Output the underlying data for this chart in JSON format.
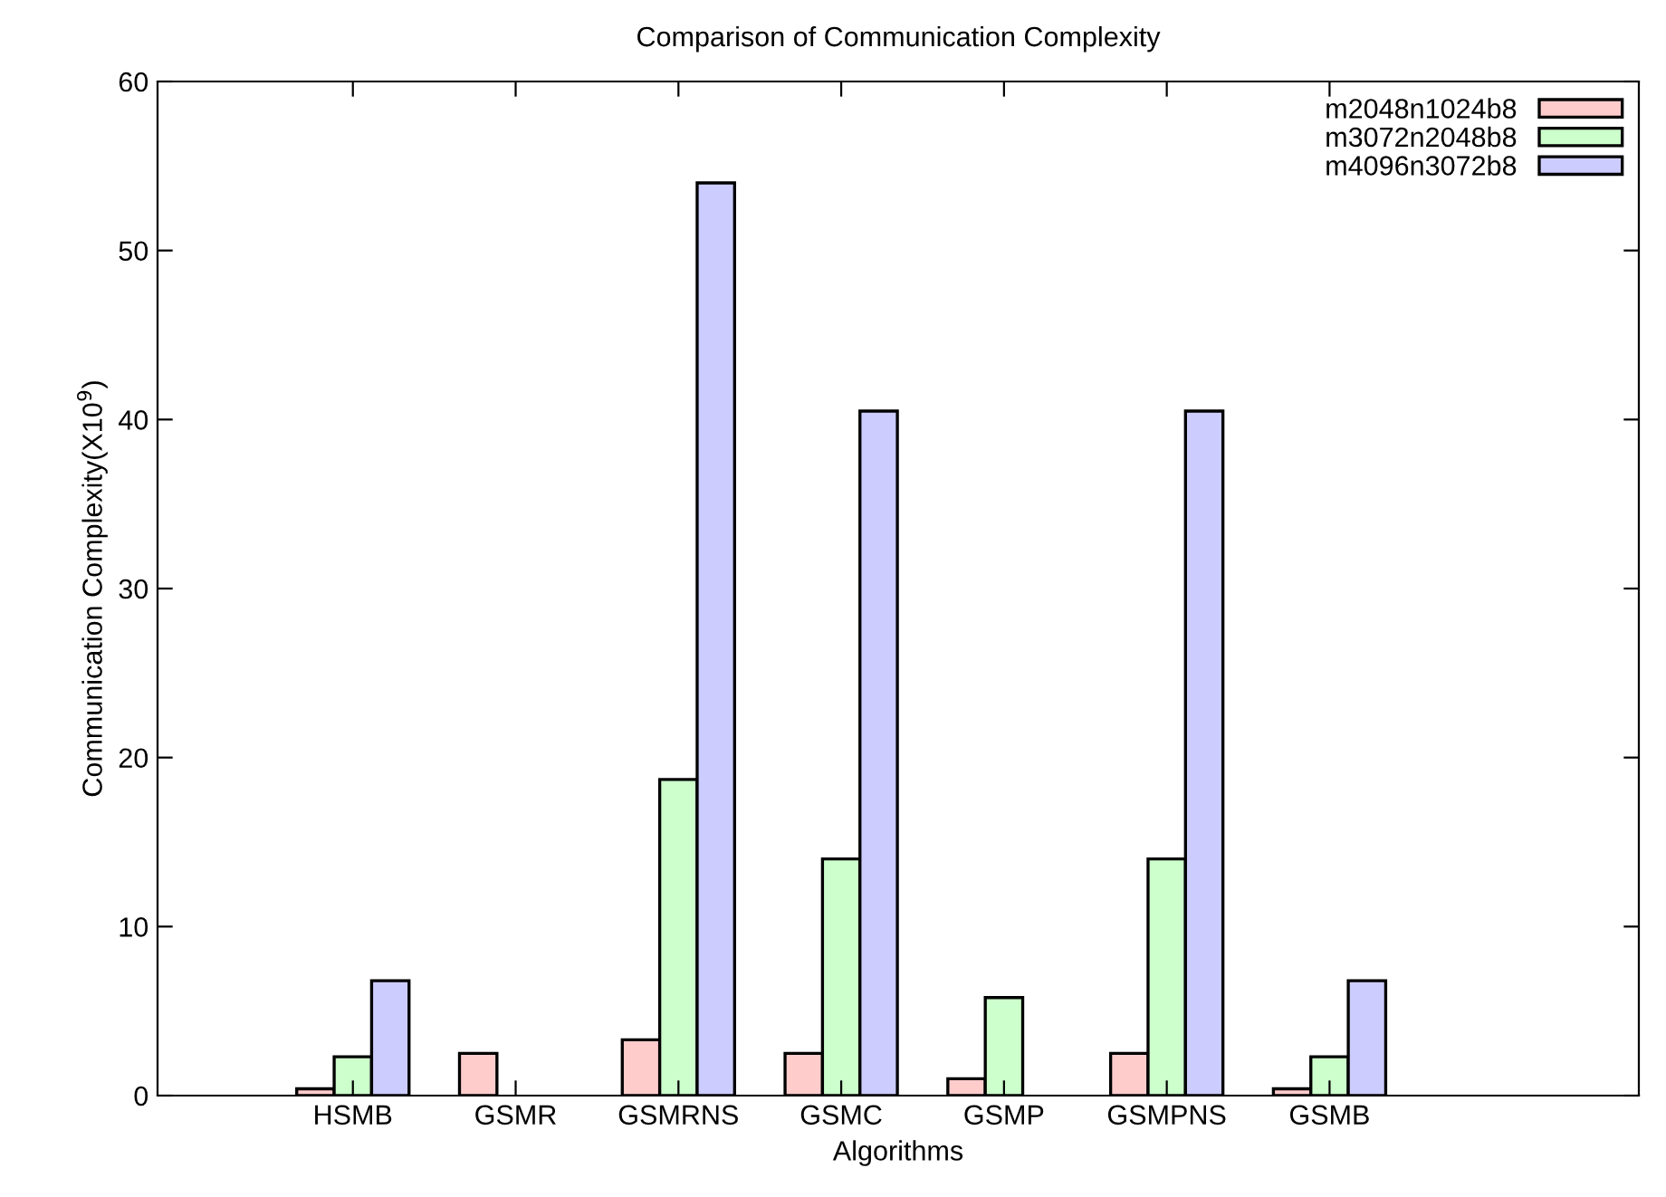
{
  "chart_data": {
    "type": "bar",
    "title": "Comparison of Communication Complexity",
    "xlabel": "Algorithms",
    "ylabel": "Communication Complexity(X10$^{9}$)",
    "categories": [
      "HSMB",
      "GSMR",
      "GSMRNS",
      "GSMC",
      "GSMP",
      "GSMPNS",
      "GSMB"
    ],
    "series": [
      {
        "name": "m2048n1024b8",
        "color": "#ffcccc",
        "values": [
          0.4,
          2.5,
          3.3,
          2.5,
          1.0,
          2.5,
          0.4
        ]
      },
      {
        "name": "m3072n2048b8",
        "color": "#ccffcc",
        "values": [
          2.3,
          0,
          18.7,
          14,
          5.8,
          14,
          2.3
        ]
      },
      {
        "name": "m4096n3072b8",
        "color": "#ccccff",
        "values": [
          6.8,
          0,
          54,
          40.5,
          0,
          40.5,
          6.8
        ]
      }
    ],
    "ylim": [
      0,
      60
    ],
    "yticks": [
      0,
      10,
      20,
      30,
      40,
      50,
      60
    ],
    "grid": false,
    "legend": "top right"
  }
}
